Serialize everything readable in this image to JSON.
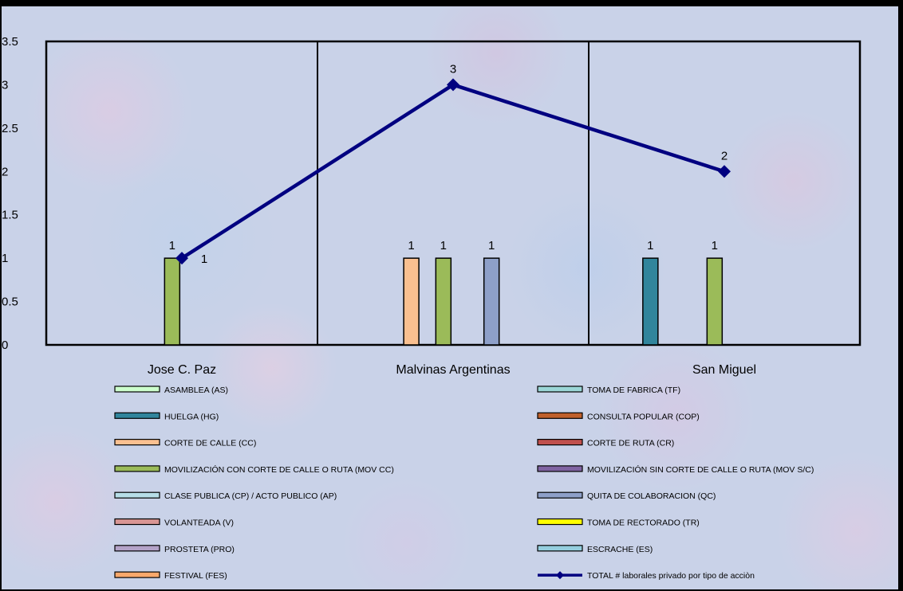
{
  "chart_data": {
    "type": "bar",
    "categories": [
      "Jose C. Paz",
      "Malvinas Argentinas",
      "San Miguel"
    ],
    "ylim": [
      0,
      3.5
    ],
    "y_ticks": [
      "0",
      "0.5",
      "1",
      "1.5",
      "2",
      "2.5",
      "3",
      "3.5"
    ],
    "grid": false,
    "legend_position": "bottom",
    "series": [
      {
        "name": "ASAMBLEA (AS)",
        "type": "bar",
        "color": "#ccffcc",
        "values": [
          0,
          0,
          0
        ]
      },
      {
        "name": "TOMA DE FABRICA (TF)",
        "type": "bar",
        "color": "#9bd6d6",
        "values": [
          0,
          0,
          0
        ]
      },
      {
        "name": "HUELGA (HG)",
        "type": "bar",
        "color": "#31859c",
        "values": [
          0,
          0,
          1
        ]
      },
      {
        "name": "CONSULTA POPULAR (COP)",
        "type": "bar",
        "color": "#c0602b",
        "values": [
          0,
          0,
          0
        ]
      },
      {
        "name": "CORTE DE CALLE (CC)",
        "type": "bar",
        "color": "#fac090",
        "values": [
          0,
          1,
          0
        ]
      },
      {
        "name": "CORTE DE RUTA (CR)",
        "type": "bar",
        "color": "#c0504d",
        "values": [
          0,
          0,
          0
        ]
      },
      {
        "name": "MOVILIZACIÓN CON CORTE DE CALLE O RUTA (MOV CC)",
        "type": "bar",
        "color": "#9bbb59",
        "values": [
          1,
          1,
          1
        ]
      },
      {
        "name": "MOVILIZACIÓN SIN CORTE DE CALLE O RUTA (MOV S/C)",
        "type": "bar",
        "color": "#8064a2",
        "values": [
          0,
          0,
          0
        ]
      },
      {
        "name": "CLASE PUBLICA (CP) / ACTO PUBLICO (AP)",
        "type": "bar",
        "color": "#b7dee8",
        "values": [
          0,
          0,
          0
        ]
      },
      {
        "name": "QUITA DE COLABORACION (QC)",
        "type": "bar",
        "color": "#8ea0c9",
        "values": [
          0,
          1,
          0
        ]
      },
      {
        "name": "VOLANTEADA (V)",
        "type": "bar",
        "color": "#d99694",
        "values": [
          0,
          0,
          0
        ]
      },
      {
        "name": "TOMA DE RECTORADO (TR)",
        "type": "bar",
        "color": "#ffff00",
        "values": [
          0,
          0,
          0
        ]
      },
      {
        "name": "PROSTETA (PRO)",
        "type": "bar",
        "color": "#b3a2c7",
        "values": [
          0,
          0,
          0
        ]
      },
      {
        "name": "ESCRACHE (ES)",
        "type": "bar",
        "color": "#93cddd",
        "values": [
          0,
          0,
          0
        ]
      },
      {
        "name": "FESTIVAL (FES)",
        "type": "bar",
        "color": "#f9a86b",
        "values": [
          0,
          0,
          0
        ]
      },
      {
        "name": "TOTAL # laborales privado por tipo de acciòn",
        "type": "line",
        "color": "#000080",
        "values": [
          1,
          3,
          2
        ]
      }
    ]
  }
}
